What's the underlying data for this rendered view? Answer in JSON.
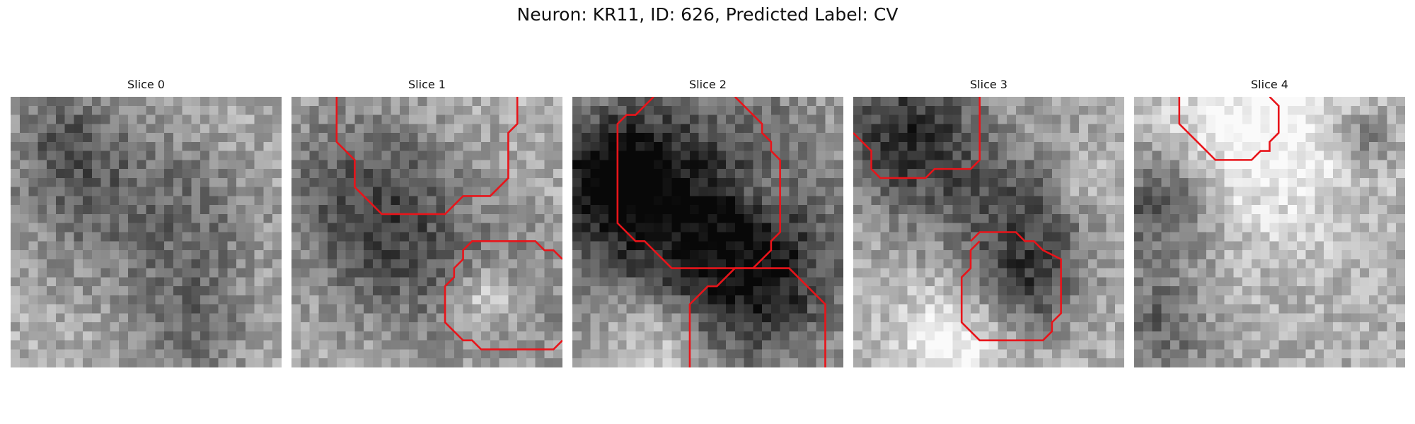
{
  "figure": {
    "title": "Neuron: KR11, ID: 626, Predicted Label: CV"
  },
  "panels": [
    {
      "title": "Slice 0",
      "grid": 30,
      "dark_regions": [
        [
          0.3,
          0.35,
          0.35,
          0.45
        ],
        [
          0.7,
          0.45,
          0.3,
          0.35
        ],
        [
          0.2,
          0.15,
          0.2,
          0.35
        ],
        [
          0.65,
          0.85,
          0.25,
          0.45
        ]
      ],
      "contours": []
    },
    {
      "title": "Slice 1",
      "grid": 30,
      "dark_regions": [
        [
          0.25,
          0.35,
          0.35,
          0.55
        ],
        [
          0.45,
          0.6,
          0.35,
          0.4
        ],
        [
          0.8,
          0.75,
          0.3,
          0.35
        ]
      ],
      "bright_regions": [
        [
          0.72,
          0.75,
          0.18,
          0.85
        ]
      ],
      "contours": [
        [
          [
            5,
            0
          ],
          [
            5,
            5
          ],
          [
            7,
            7
          ],
          [
            7,
            10
          ],
          [
            10,
            13
          ],
          [
            17,
            13
          ],
          [
            19,
            11
          ],
          [
            22,
            11
          ],
          [
            24,
            9
          ],
          [
            24,
            4
          ],
          [
            25,
            3
          ],
          [
            25,
            0
          ]
        ],
        [
          [
            30,
            18
          ],
          [
            29,
            17
          ],
          [
            28,
            17
          ],
          [
            27,
            16
          ],
          [
            20,
            16
          ],
          [
            19,
            17
          ],
          [
            19,
            18
          ],
          [
            18,
            19
          ],
          [
            18,
            20
          ],
          [
            17,
            21
          ],
          [
            17,
            25
          ],
          [
            18,
            26
          ],
          [
            19,
            27
          ],
          [
            20,
            27
          ],
          [
            21,
            28
          ],
          [
            29,
            28
          ],
          [
            30,
            27
          ]
        ]
      ]
    },
    {
      "title": "Slice 2",
      "grid": 30,
      "dark_regions": [
        [
          0.45,
          0.45,
          0.55,
          0.92
        ],
        [
          0.15,
          0.3,
          0.25,
          0.8
        ],
        [
          0.7,
          0.7,
          0.3,
          0.55
        ]
      ],
      "bright_regions": [
        [
          0.3,
          0.9,
          0.25,
          0.7
        ],
        [
          0.7,
          0.35,
          0.12,
          0.45
        ]
      ],
      "contours": [
        [
          [
            9,
            0
          ],
          [
            7,
            2
          ],
          [
            6,
            2
          ],
          [
            5,
            3
          ],
          [
            5,
            14
          ],
          [
            7,
            16
          ],
          [
            8,
            16
          ],
          [
            11,
            19
          ],
          [
            20,
            19
          ],
          [
            22,
            17
          ],
          [
            22,
            16
          ],
          [
            23,
            15
          ],
          [
            23,
            7
          ],
          [
            22,
            6
          ],
          [
            22,
            5
          ],
          [
            21,
            4
          ],
          [
            21,
            3
          ],
          [
            18,
            0
          ]
        ],
        [
          [
            13,
            30
          ],
          [
            13,
            23
          ],
          [
            14,
            22
          ],
          [
            15,
            21
          ],
          [
            16,
            21
          ],
          [
            18,
            19
          ],
          [
            24,
            19
          ],
          [
            25,
            20
          ],
          [
            26,
            21
          ],
          [
            27,
            22
          ],
          [
            28,
            23
          ],
          [
            28,
            29
          ],
          [
            28,
            30
          ]
        ]
      ]
    },
    {
      "title": "Slice 3",
      "grid": 30,
      "dark_regions": [
        [
          0.2,
          0.15,
          0.3,
          0.88
        ],
        [
          0.6,
          0.45,
          0.3,
          0.6
        ],
        [
          0.65,
          0.7,
          0.2,
          0.5
        ]
      ],
      "bright_regions": [
        [
          0.35,
          0.9,
          0.25,
          0.7
        ],
        [
          0.85,
          0.3,
          0.12,
          0.45
        ]
      ],
      "contours": [
        [
          [
            0,
            4
          ],
          [
            2,
            6
          ],
          [
            2,
            8
          ],
          [
            3,
            9
          ],
          [
            8,
            9
          ],
          [
            9,
            8
          ],
          [
            13,
            8
          ],
          [
            14,
            7
          ],
          [
            14,
            0
          ]
        ],
        [
          [
            14,
            16
          ],
          [
            13,
            17
          ],
          [
            13,
            19
          ],
          [
            12,
            20
          ],
          [
            12,
            25
          ],
          [
            13,
            26
          ],
          [
            14,
            27
          ],
          [
            21,
            27
          ],
          [
            22,
            26
          ],
          [
            22,
            25
          ],
          [
            23,
            24
          ],
          [
            23,
            18
          ],
          [
            21,
            17
          ],
          [
            20,
            16
          ],
          [
            19,
            16
          ],
          [
            18,
            15
          ],
          [
            14,
            15
          ],
          [
            13,
            16
          ]
        ]
      ]
    },
    {
      "title": "Slice 4",
      "grid": 30,
      "dark_regions": [
        [
          0.1,
          0.4,
          0.25,
          0.7
        ],
        [
          0.85,
          0.15,
          0.12,
          0.45
        ],
        [
          0.1,
          0.85,
          0.2,
          0.5
        ]
      ],
      "bright_regions": [
        [
          0.45,
          0.15,
          0.45,
          0.85
        ]
      ],
      "contours": [
        [
          [
            5,
            0
          ],
          [
            5,
            3
          ],
          [
            7,
            5
          ],
          [
            8,
            6
          ],
          [
            9,
            7
          ],
          [
            13,
            7
          ],
          [
            14,
            6
          ],
          [
            15,
            6
          ],
          [
            15,
            5
          ],
          [
            16,
            4
          ],
          [
            16,
            1
          ],
          [
            15,
            0
          ]
        ]
      ]
    }
  ]
}
